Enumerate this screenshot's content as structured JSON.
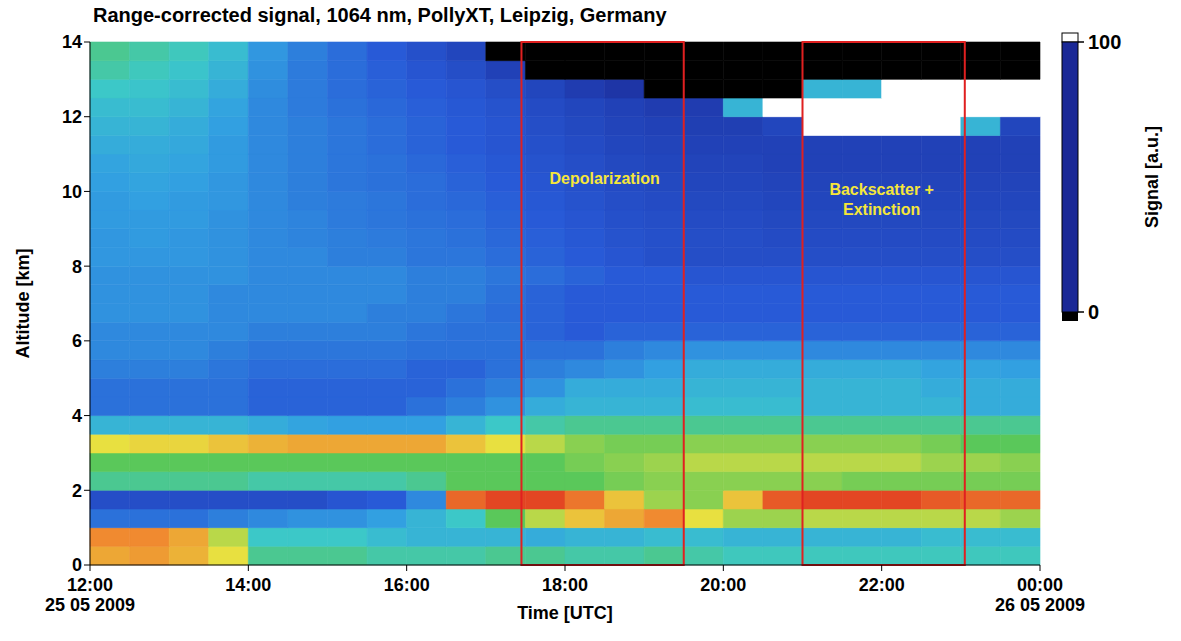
{
  "chart_data": {
    "type": "heatmap",
    "title": "Range-corrected signal, 1064 nm, PollyXT, Leipzig, Germany",
    "x_label": "Time [UTC]",
    "y_label": "Altitude [km]",
    "xlim": [
      12,
      24
    ],
    "xticks": [
      {
        "value": 12,
        "label": "12:00"
      },
      {
        "value": 14,
        "label": "14:00"
      },
      {
        "value": 16,
        "label": "16:00"
      },
      {
        "value": 18,
        "label": "18:00"
      },
      {
        "value": 20,
        "label": "20:00"
      },
      {
        "value": 22,
        "label": "22:00"
      },
      {
        "value": 24,
        "label": "00:00"
      }
    ],
    "x_date_labels": [
      {
        "value": 12,
        "label": "25 05 2009"
      },
      {
        "value": 24,
        "label": "26 05 2009"
      }
    ],
    "ylim": [
      0,
      14
    ],
    "yticks": [
      0,
      2,
      4,
      6,
      8,
      10,
      12,
      14
    ],
    "colorbar": {
      "label": "Signal [a.u.]",
      "range": [
        0,
        100
      ],
      "ticks": [
        0,
        100
      ]
    },
    "cells": {
      "x_edges": [
        12,
        12.5,
        13,
        13.5,
        14,
        14.5,
        15,
        15.5,
        16,
        16.5,
        17,
        17.5,
        18,
        18.5,
        19,
        19.5,
        20,
        20.5,
        21,
        21.5,
        22,
        22.5,
        23,
        23.5,
        24
      ],
      "y_edges": [
        0,
        0.5,
        1,
        1.5,
        2,
        2.5,
        3,
        3.5,
        4,
        4.5,
        5,
        5.5,
        6,
        6.5,
        7,
        7.5,
        8,
        8.5,
        9,
        9.5,
        10,
        10.5,
        11,
        11.5,
        12,
        12.5,
        13,
        13.5,
        14
      ],
      "values": [
        [
          80,
          82,
          78,
          70,
          50,
          50,
          50,
          48,
          48,
          48,
          50,
          50,
          48,
          48,
          50,
          48,
          46,
          46,
          46,
          46,
          46,
          46,
          46,
          46
        ],
        [
          85,
          85,
          80,
          65,
          45,
          45,
          45,
          42,
          40,
          40,
          40,
          38,
          40,
          40,
          42,
          42,
          40,
          40,
          40,
          40,
          40,
          42,
          42,
          42
        ],
        [
          25,
          25,
          25,
          28,
          30,
          32,
          32,
          35,
          40,
          45,
          55,
          65,
          75,
          80,
          85,
          70,
          62,
          62,
          65,
          65,
          65,
          65,
          65,
          62
        ],
        [
          15,
          15,
          15,
          15,
          15,
          15,
          18,
          20,
          30,
          90,
          95,
          95,
          88,
          75,
          62,
          60,
          75,
          92,
          95,
          95,
          95,
          92,
          90,
          90
        ],
        [
          50,
          50,
          50,
          50,
          48,
          48,
          48,
          48,
          50,
          55,
          55,
          55,
          55,
          58,
          60,
          60,
          60,
          60,
          60,
          58,
          58,
          58,
          58,
          58
        ],
        [
          55,
          55,
          55,
          55,
          55,
          55,
          55,
          55,
          55,
          55,
          55,
          55,
          58,
          60,
          62,
          65,
          65,
          65,
          65,
          65,
          65,
          62,
          62,
          60
        ],
        [
          70,
          72,
          72,
          75,
          78,
          80,
          80,
          80,
          80,
          75,
          70,
          65,
          60,
          58,
          58,
          60,
          60,
          60,
          60,
          60,
          60,
          58,
          55,
          55
        ],
        [
          40,
          40,
          40,
          40,
          38,
          36,
          35,
          35,
          35,
          40,
          45,
          48,
          50,
          50,
          50,
          50,
          50,
          50,
          50,
          50,
          50,
          50,
          50,
          50
        ],
        [
          25,
          25,
          25,
          25,
          22,
          22,
          22,
          22,
          25,
          28,
          32,
          38,
          40,
          40,
          40,
          42,
          42,
          42,
          40,
          40,
          40,
          40,
          38,
          38
        ],
        [
          25,
          25,
          25,
          25,
          22,
          22,
          22,
          22,
          22,
          25,
          28,
          32,
          38,
          38,
          38,
          40,
          40,
          40,
          40,
          40,
          40,
          38,
          38,
          38
        ],
        [
          28,
          28,
          28,
          26,
          24,
          24,
          24,
          24,
          22,
          22,
          25,
          28,
          30,
          32,
          35,
          38,
          38,
          38,
          38,
          38,
          38,
          36,
          36,
          35
        ],
        [
          30,
          30,
          30,
          28,
          26,
          26,
          26,
          26,
          25,
          25,
          25,
          25,
          25,
          28,
          30,
          32,
          32,
          32,
          30,
          30,
          30,
          30,
          30,
          30
        ],
        [
          30,
          30,
          30,
          30,
          28,
          28,
          28,
          28,
          26,
          25,
          25,
          22,
          20,
          22,
          22,
          22,
          22,
          22,
          22,
          22,
          22,
          22,
          22,
          22
        ],
        [
          32,
          32,
          32,
          30,
          30,
          30,
          30,
          28,
          28,
          26,
          24,
          22,
          20,
          20,
          20,
          20,
          20,
          20,
          20,
          20,
          20,
          20,
          20,
          20
        ],
        [
          32,
          32,
          32,
          30,
          30,
          30,
          30,
          30,
          28,
          28,
          25,
          22,
          20,
          20,
          20,
          20,
          20,
          20,
          20,
          20,
          20,
          20,
          20,
          20
        ],
        [
          32,
          32,
          32,
          32,
          30,
          30,
          30,
          30,
          28,
          28,
          26,
          24,
          22,
          20,
          20,
          18,
          18,
          18,
          18,
          18,
          18,
          18,
          18,
          18
        ],
        [
          33,
          33,
          33,
          32,
          30,
          30,
          28,
          28,
          26,
          26,
          24,
          22,
          20,
          18,
          16,
          15,
          15,
          15,
          15,
          15,
          15,
          15,
          15,
          15
        ],
        [
          33,
          34,
          33,
          32,
          30,
          29,
          28,
          27,
          26,
          25,
          23,
          21,
          19,
          17,
          16,
          15,
          15,
          14,
          14,
          14,
          14,
          14,
          14,
          14
        ],
        [
          34,
          34,
          34,
          32,
          30,
          29,
          27,
          26,
          25,
          24,
          22,
          20,
          18,
          16,
          15,
          14,
          14,
          13,
          13,
          13,
          13,
          13,
          13,
          13
        ],
        [
          34,
          35,
          34,
          33,
          30,
          28,
          27,
          26,
          24,
          23,
          21,
          19,
          17,
          15,
          14,
          13,
          13,
          12,
          12,
          12,
          12,
          12,
          12,
          12
        ],
        [
          35,
          36,
          35,
          33,
          30,
          28,
          26,
          25,
          24,
          22,
          20,
          18,
          16,
          14,
          13,
          12,
          12,
          11,
          11,
          11,
          11,
          11,
          11,
          11
        ],
        [
          36,
          37,
          36,
          34,
          30,
          28,
          26,
          25,
          23,
          21,
          19,
          17,
          15,
          13,
          12,
          11,
          11,
          10,
          10,
          10,
          10,
          10,
          10,
          10
        ],
        [
          38,
          38,
          37,
          34,
          30,
          28,
          26,
          24,
          22,
          20,
          18,
          16,
          14,
          12,
          11,
          10,
          10,
          10,
          10,
          10,
          10,
          10,
          10,
          10
        ],
        [
          40,
          40,
          38,
          35,
          30,
          28,
          26,
          24,
          22,
          20,
          18,
          15,
          13,
          11,
          10,
          9,
          9,
          12,
          120,
          120,
          120,
          120,
          40,
          12
        ],
        [
          42,
          42,
          40,
          36,
          30,
          27,
          25,
          23,
          21,
          19,
          17,
          14,
          12,
          10,
          8,
          8,
          40,
          120,
          120,
          120,
          120,
          120,
          120,
          120
        ],
        [
          45,
          44,
          42,
          38,
          31,
          27,
          24,
          22,
          20,
          18,
          15,
          12,
          8,
          5,
          -10,
          -10,
          -10,
          -10,
          40,
          40,
          120,
          120,
          120,
          120
        ],
        [
          48,
          46,
          44,
          40,
          32,
          27,
          24,
          21,
          18,
          15,
          10,
          -10,
          -10,
          -10,
          -10,
          -10,
          -10,
          -10,
          -10,
          -10,
          -10,
          -10,
          -10,
          -10
        ],
        [
          50,
          48,
          46,
          42,
          33,
          28,
          24,
          20,
          16,
          12,
          -10,
          -10,
          -10,
          -10,
          -10,
          -10,
          -10,
          -10,
          -10,
          -10,
          -10,
          -10,
          -10,
          -10
        ]
      ]
    },
    "annotations": [
      {
        "text": "Depolarization",
        "x": [
          17.45,
          19.5
        ],
        "y": [
          0,
          14
        ],
        "label_x": 18.5,
        "label_y": 10.2
      },
      {
        "text": "Backscatter + Extinction",
        "x": [
          21.0,
          23.05
        ],
        "y": [
          0,
          14
        ],
        "label_x": 22.0,
        "label_y": 9.9
      }
    ]
  }
}
